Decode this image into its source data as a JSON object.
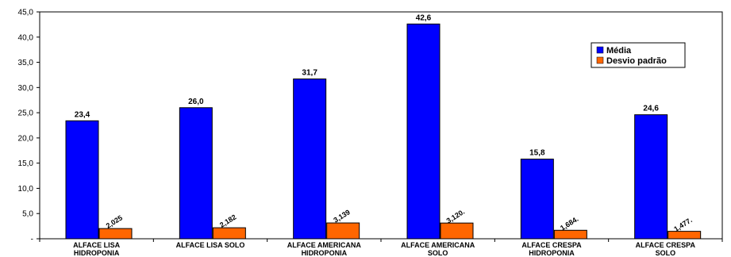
{
  "chart_data": {
    "type": "bar",
    "categories": [
      [
        "ALFACE LISA",
        "HIDROPONIA"
      ],
      [
        "ALFACE LISA SOLO"
      ],
      [
        "ALFACE AMERICANA",
        "HIDROPONIA"
      ],
      [
        "ALFACE AMERICANA",
        "SOLO"
      ],
      [
        "ALFACE CRESPA",
        "HIDROPONIA"
      ],
      [
        "ALFACE CRESPA",
        "SOLO"
      ]
    ],
    "series": [
      {
        "name": "Média",
        "color": "#0000ff",
        "values": [
          23.4,
          26.0,
          31.7,
          42.6,
          15.8,
          24.6
        ],
        "labels": [
          "23,4",
          "26,0",
          "31,7",
          "42,6",
          "15,8",
          "24,6"
        ]
      },
      {
        "name": "Desvio padrão",
        "color": "#ff6600",
        "values": [
          2.025,
          2.182,
          3.139,
          3.12,
          1.684,
          1.477
        ],
        "labels": [
          "2,025",
          "2,182",
          "3,139",
          "3,120.",
          "1,684.",
          "1,477."
        ]
      }
    ],
    "ylim": [
      0,
      45
    ],
    "yticks": [
      "-",
      "5,0",
      "10,0",
      "15,0",
      "20,0",
      "25,0",
      "30,0",
      "35,0",
      "40,0",
      "45,0"
    ],
    "grid": false,
    "legend": "top-right"
  }
}
